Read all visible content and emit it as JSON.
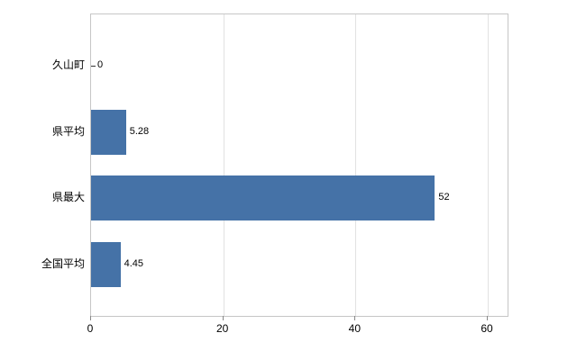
{
  "chart_data": {
    "type": "bar",
    "orientation": "horizontal",
    "title": "",
    "categories": [
      "久山町",
      "県平均",
      "県最大",
      "全国平均"
    ],
    "values": [
      0,
      5.28,
      52,
      4.45
    ],
    "value_labels": [
      "0",
      "5.28",
      "52",
      "4.45"
    ],
    "x_ticks": [
      0,
      20,
      40,
      60
    ],
    "xlim": [
      0,
      63
    ],
    "grid": true,
    "legend": "none",
    "colors": {
      "bar_fill": "#4572a7",
      "bar_border": "#37movie5d8f",
      "axis_line": "#c6c6c6",
      "grid_line": "#e2e2e2",
      "tick_mark": "#888888",
      "text": "#000000",
      "background": "#ffffff"
    }
  }
}
